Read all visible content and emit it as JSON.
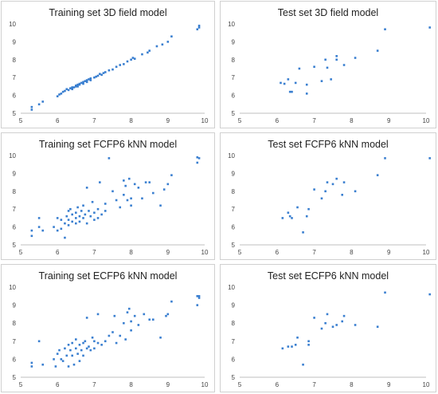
{
  "colors": {
    "point": "#3a7fd0",
    "axis": "#bfbfbf",
    "tick_text": "#444444",
    "border": "#d0d0d0"
  },
  "chart_data": [
    {
      "type": "scatter",
      "title": "Training set 3D field model",
      "xlabel": "",
      "ylabel": "",
      "xlim": [
        5,
        10
      ],
      "ylim": [
        5,
        10
      ],
      "xticks": [
        "5",
        "6",
        "7",
        "8",
        "9",
        "10"
      ],
      "yticks": [
        "5",
        "6",
        "7",
        "8",
        "9",
        "10"
      ],
      "grid": false,
      "points": [
        [
          5.3,
          5.2
        ],
        [
          5.3,
          5.35
        ],
        [
          5.5,
          5.5
        ],
        [
          5.6,
          5.65
        ],
        [
          6.0,
          5.95
        ],
        [
          6.05,
          6.05
        ],
        [
          6.1,
          6.1
        ],
        [
          6.15,
          6.2
        ],
        [
          6.2,
          6.25
        ],
        [
          6.25,
          6.35
        ],
        [
          6.3,
          6.3
        ],
        [
          6.35,
          6.4
        ],
        [
          6.4,
          6.35
        ],
        [
          6.4,
          6.45
        ],
        [
          6.45,
          6.45
        ],
        [
          6.5,
          6.5
        ],
        [
          6.5,
          6.55
        ],
        [
          6.55,
          6.5
        ],
        [
          6.55,
          6.6
        ],
        [
          6.6,
          6.6
        ],
        [
          6.6,
          6.65
        ],
        [
          6.65,
          6.7
        ],
        [
          6.7,
          6.65
        ],
        [
          6.7,
          6.75
        ],
        [
          6.75,
          6.8
        ],
        [
          6.8,
          6.75
        ],
        [
          6.8,
          6.85
        ],
        [
          6.85,
          6.9
        ],
        [
          6.9,
          6.85
        ],
        [
          6.9,
          6.95
        ],
        [
          7.0,
          7.0
        ],
        [
          7.05,
          7.05
        ],
        [
          7.1,
          7.1
        ],
        [
          7.15,
          7.2
        ],
        [
          7.2,
          7.15
        ],
        [
          7.25,
          7.25
        ],
        [
          7.3,
          7.3
        ],
        [
          7.4,
          7.4
        ],
        [
          7.5,
          7.45
        ],
        [
          7.6,
          7.6
        ],
        [
          7.7,
          7.7
        ],
        [
          7.8,
          7.75
        ],
        [
          7.9,
          7.9
        ],
        [
          8.0,
          8.0
        ],
        [
          8.05,
          8.1
        ],
        [
          8.1,
          8.05
        ],
        [
          8.3,
          8.3
        ],
        [
          8.45,
          8.4
        ],
        [
          8.5,
          8.5
        ],
        [
          8.7,
          8.75
        ],
        [
          8.85,
          8.85
        ],
        [
          9.0,
          9.0
        ],
        [
          9.1,
          9.3
        ],
        [
          9.8,
          9.7
        ],
        [
          9.85,
          9.8
        ],
        [
          9.85,
          9.9
        ]
      ]
    },
    {
      "type": "scatter",
      "title": "Test set 3D field model",
      "xlabel": "",
      "ylabel": "",
      "xlim": [
        5,
        10
      ],
      "ylim": [
        5,
        10
      ],
      "xticks": [
        "5",
        "6",
        "7",
        "8",
        "9",
        "10"
      ],
      "yticks": [
        "5",
        "6",
        "7",
        "8",
        "9",
        "10"
      ],
      "grid": false,
      "points": [
        [
          6.1,
          6.7
        ],
        [
          6.2,
          6.65
        ],
        [
          6.3,
          6.9
        ],
        [
          6.35,
          6.2
        ],
        [
          6.4,
          6.2
        ],
        [
          6.5,
          6.7
        ],
        [
          6.6,
          7.5
        ],
        [
          6.8,
          6.1
        ],
        [
          6.8,
          6.6
        ],
        [
          7.0,
          7.6
        ],
        [
          7.2,
          6.8
        ],
        [
          7.3,
          8.0
        ],
        [
          7.35,
          7.55
        ],
        [
          7.45,
          6.9
        ],
        [
          7.6,
          8.2
        ],
        [
          7.6,
          8.0
        ],
        [
          7.8,
          7.7
        ],
        [
          8.1,
          8.1
        ],
        [
          8.7,
          8.5
        ],
        [
          8.9,
          9.7
        ],
        [
          10.1,
          9.8
        ]
      ]
    },
    {
      "type": "scatter",
      "title": "Training set FCFP6 kNN model",
      "xlabel": "",
      "ylabel": "",
      "xlim": [
        5,
        10
      ],
      "ylim": [
        5,
        10
      ],
      "xticks": [
        "5",
        "6",
        "7",
        "8",
        "9",
        "10"
      ],
      "yticks": [
        "5",
        "6",
        "7",
        "8",
        "9",
        "10"
      ],
      "grid": false,
      "points": [
        [
          5.3,
          5.8
        ],
        [
          5.3,
          5.5
        ],
        [
          5.5,
          6.5
        ],
        [
          5.5,
          6.0
        ],
        [
          5.6,
          5.8
        ],
        [
          5.9,
          6.0
        ],
        [
          6.0,
          6.5
        ],
        [
          6.0,
          5.8
        ],
        [
          6.1,
          6.4
        ],
        [
          6.1,
          5.9
        ],
        [
          6.2,
          6.2
        ],
        [
          6.2,
          5.4
        ],
        [
          6.25,
          6.6
        ],
        [
          6.3,
          6.9
        ],
        [
          6.3,
          6.4
        ],
        [
          6.3,
          6.1
        ],
        [
          6.35,
          7.0
        ],
        [
          6.4,
          6.7
        ],
        [
          6.4,
          6.3
        ],
        [
          6.5,
          6.8
        ],
        [
          6.5,
          6.5
        ],
        [
          6.5,
          6.2
        ],
        [
          6.55,
          7.1
        ],
        [
          6.6,
          6.6
        ],
        [
          6.6,
          6.3
        ],
        [
          6.65,
          6.9
        ],
        [
          6.7,
          6.5
        ],
        [
          6.7,
          7.2
        ],
        [
          6.75,
          6.7
        ],
        [
          6.8,
          8.2
        ],
        [
          6.8,
          6.2
        ],
        [
          6.85,
          6.9
        ],
        [
          6.9,
          6.6
        ],
        [
          6.95,
          7.4
        ],
        [
          7.0,
          6.8
        ],
        [
          7.0,
          6.4
        ],
        [
          7.1,
          7.0
        ],
        [
          7.1,
          6.5
        ],
        [
          7.15,
          8.5
        ],
        [
          7.2,
          6.7
        ],
        [
          7.3,
          7.3
        ],
        [
          7.3,
          6.9
        ],
        [
          7.4,
          9.85
        ],
        [
          7.5,
          8.0
        ],
        [
          7.6,
          7.5
        ],
        [
          7.7,
          7.1
        ],
        [
          7.8,
          8.6
        ],
        [
          7.8,
          7.8
        ],
        [
          7.85,
          8.3
        ],
        [
          7.9,
          7.5
        ],
        [
          7.95,
          8.7
        ],
        [
          8.0,
          7.2
        ],
        [
          8.0,
          7.6
        ],
        [
          8.1,
          8.4
        ],
        [
          8.2,
          8.2
        ],
        [
          8.3,
          7.6
        ],
        [
          8.4,
          8.5
        ],
        [
          8.5,
          8.5
        ],
        [
          8.6,
          7.9
        ],
        [
          8.8,
          7.2
        ],
        [
          8.9,
          8.1
        ],
        [
          9.0,
          8.4
        ],
        [
          9.1,
          8.9
        ],
        [
          9.8,
          9.6
        ],
        [
          9.8,
          9.9
        ],
        [
          9.85,
          9.85
        ]
      ]
    },
    {
      "type": "scatter",
      "title": "Test set FCFP6 kNN model",
      "xlabel": "",
      "ylabel": "",
      "xlim": [
        5,
        10
      ],
      "ylim": [
        5,
        10
      ],
      "xticks": [
        "5",
        "6",
        "7",
        "8",
        "9",
        "10"
      ],
      "yticks": [
        "5",
        "6",
        "7",
        "8",
        "9",
        "10"
      ],
      "grid": false,
      "points": [
        [
          6.15,
          6.5
        ],
        [
          6.3,
          6.8
        ],
        [
          6.35,
          6.6
        ],
        [
          6.4,
          6.5
        ],
        [
          6.55,
          7.1
        ],
        [
          6.7,
          5.7
        ],
        [
          6.8,
          6.6
        ],
        [
          6.85,
          7.0
        ],
        [
          7.0,
          8.1
        ],
        [
          7.2,
          7.6
        ],
        [
          7.3,
          8.0
        ],
        [
          7.35,
          8.5
        ],
        [
          7.5,
          8.4
        ],
        [
          7.6,
          8.7
        ],
        [
          7.75,
          7.8
        ],
        [
          7.8,
          8.5
        ],
        [
          8.1,
          8.0
        ],
        [
          8.7,
          8.9
        ],
        [
          8.9,
          9.85
        ],
        [
          10.1,
          9.85
        ]
      ]
    },
    {
      "type": "scatter",
      "title": "Training set ECFP6 kNN model",
      "xlabel": "",
      "ylabel": "",
      "xlim": [
        5,
        10
      ],
      "ylim": [
        5,
        10
      ],
      "xticks": [
        "5",
        "6",
        "7",
        "8",
        "9",
        "10"
      ],
      "yticks": [
        "5",
        "6",
        "7",
        "8",
        "9",
        "10"
      ],
      "grid": false,
      "points": [
        [
          5.3,
          5.8
        ],
        [
          5.3,
          5.6
        ],
        [
          5.5,
          7.0
        ],
        [
          5.6,
          5.7
        ],
        [
          5.9,
          6.0
        ],
        [
          5.95,
          5.6
        ],
        [
          6.0,
          6.3
        ],
        [
          6.05,
          6.5
        ],
        [
          6.1,
          6.0
        ],
        [
          6.15,
          5.9
        ],
        [
          6.2,
          6.6
        ],
        [
          6.25,
          6.2
        ],
        [
          6.3,
          6.8
        ],
        [
          6.3,
          5.6
        ],
        [
          6.35,
          6.5
        ],
        [
          6.4,
          6.9
        ],
        [
          6.4,
          6.2
        ],
        [
          6.45,
          5.7
        ],
        [
          6.5,
          6.6
        ],
        [
          6.5,
          7.1
        ],
        [
          6.55,
          6.3
        ],
        [
          6.6,
          6.8
        ],
        [
          6.6,
          5.9
        ],
        [
          6.65,
          6.5
        ],
        [
          6.7,
          6.9
        ],
        [
          6.7,
          6.2
        ],
        [
          6.75,
          7.0
        ],
        [
          6.8,
          8.3
        ],
        [
          6.8,
          6.6
        ],
        [
          6.85,
          6.7
        ],
        [
          6.9,
          6.5
        ],
        [
          6.95,
          7.2
        ],
        [
          7.0,
          7.0
        ],
        [
          7.0,
          6.6
        ],
        [
          7.1,
          8.5
        ],
        [
          7.1,
          6.9
        ],
        [
          7.2,
          6.8
        ],
        [
          7.3,
          7.0
        ],
        [
          7.4,
          7.3
        ],
        [
          7.5,
          7.5
        ],
        [
          7.55,
          8.4
        ],
        [
          7.6,
          6.9
        ],
        [
          7.7,
          7.3
        ],
        [
          7.8,
          8.0
        ],
        [
          7.85,
          7.1
        ],
        [
          7.9,
          8.6
        ],
        [
          7.95,
          8.8
        ],
        [
          8.0,
          8.1
        ],
        [
          8.0,
          7.6
        ],
        [
          8.1,
          8.4
        ],
        [
          8.2,
          7.9
        ],
        [
          8.35,
          8.5
        ],
        [
          8.5,
          8.2
        ],
        [
          8.6,
          8.2
        ],
        [
          8.8,
          7.2
        ],
        [
          8.95,
          8.4
        ],
        [
          9.0,
          8.5
        ],
        [
          9.1,
          9.2
        ],
        [
          9.8,
          9.5
        ],
        [
          9.85,
          9.4
        ],
        [
          9.8,
          9.0
        ],
        [
          9.85,
          9.5
        ]
      ]
    },
    {
      "type": "scatter",
      "title": "Test set ECFP6 kNN model",
      "xlabel": "",
      "ylabel": "",
      "xlim": [
        5,
        10
      ],
      "ylim": [
        5,
        10
      ],
      "xticks": [
        "5",
        "6",
        "7",
        "8",
        "9",
        "10"
      ],
      "yticks": [
        "5",
        "6",
        "7",
        "8",
        "9",
        "10"
      ],
      "grid": false,
      "points": [
        [
          6.15,
          6.6
        ],
        [
          6.3,
          6.7
        ],
        [
          6.4,
          6.7
        ],
        [
          6.5,
          6.8
        ],
        [
          6.55,
          7.2
        ],
        [
          6.7,
          5.7
        ],
        [
          6.85,
          6.8
        ],
        [
          6.85,
          7.0
        ],
        [
          7.0,
          8.3
        ],
        [
          7.2,
          7.7
        ],
        [
          7.3,
          8.0
        ],
        [
          7.35,
          8.5
        ],
        [
          7.5,
          7.8
        ],
        [
          7.6,
          7.9
        ],
        [
          7.75,
          8.1
        ],
        [
          7.8,
          8.4
        ],
        [
          8.1,
          7.9
        ],
        [
          8.7,
          7.8
        ],
        [
          8.9,
          9.7
        ],
        [
          10.1,
          9.6
        ]
      ]
    }
  ]
}
